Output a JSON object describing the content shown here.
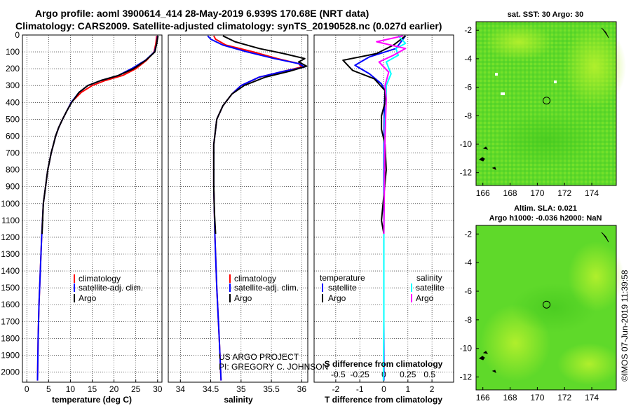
{
  "figure": {
    "title_line1": "Argo profile: aoml 3900614_414 28-May-2019 6.939S 170.68E (NRT data)",
    "title_line2": "Climatology: CARS2009. Satellite-adjusted climatology: synTS_20190528.nc (0.027d earlier)",
    "credit_line1": "US ARGO PROJECT",
    "credit_line2": "PI: GREGORY C. JOHNSON",
    "timestamp": "©IMOS 07-Jun-2019 11:39:58",
    "colors": {
      "climatology": "#ff0000",
      "satellite": "#0000ff",
      "argo": "#000000",
      "sal_satellite": "#00ffff",
      "sal_argo": "#ff00ff",
      "map_base": "#5fd92a",
      "map_light": "#a8ee2a"
    }
  },
  "chart_data": [
    {
      "type": "line",
      "name": "temperature-profile",
      "xlabel": "temperature (deg C)",
      "xlim": [
        -1,
        31
      ],
      "xticks": [
        0,
        5,
        10,
        15,
        20,
        25,
        30
      ],
      "ylim": [
        2060,
        0
      ],
      "yticks": [
        0,
        100,
        200,
        300,
        400,
        500,
        600,
        700,
        800,
        900,
        1000,
        1100,
        1200,
        1300,
        1400,
        1500,
        1600,
        1700,
        1800,
        1900,
        2000
      ],
      "legend": {
        "position": "lower-center",
        "entries": [
          "climatology",
          "satellite-adj. clim.",
          "Argo"
        ]
      },
      "series": [
        {
          "name": "climatology",
          "color": "#ff0000",
          "x": [
            29.8,
            29.6,
            29.2,
            27.5,
            25,
            22,
            18,
            15,
            12.5,
            10.2,
            9.2,
            8.2,
            7.3,
            6.6,
            6.1,
            5.6,
            5.2,
            4.8,
            4.3,
            3.8,
            3.4,
            3.1,
            2.8,
            2.6,
            2.45
          ],
          "y": [
            5,
            50,
            100,
            150,
            200,
            240,
            270,
            300,
            340,
            400,
            450,
            500,
            550,
            600,
            650,
            700,
            750,
            800,
            900,
            1000,
            1200,
            1400,
            1600,
            1800,
            2050
          ]
        },
        {
          "name": "satellite-adj. clim.",
          "color": "#0000ff",
          "x": [
            30.0,
            29.8,
            29.3,
            27.2,
            24,
            21,
            17,
            14,
            12,
            10.2,
            9.2,
            8.2,
            7.3,
            6.6,
            6.1,
            5.6,
            5.2,
            4.8,
            4.3,
            3.8,
            3.4,
            3.1,
            2.8,
            2.6,
            2.45
          ],
          "y": [
            5,
            50,
            100,
            150,
            200,
            240,
            270,
            300,
            340,
            400,
            450,
            500,
            550,
            600,
            650,
            700,
            750,
            800,
            900,
            1000,
            1200,
            1400,
            1600,
            1800,
            2050
          ]
        },
        {
          "name": "Argo",
          "color": "#000000",
          "x": [
            30.1,
            29.8,
            29.4,
            27.3,
            24.5,
            21,
            17,
            14,
            12,
            10.3,
            9.2,
            8.2,
            7.3,
            6.6,
            6.1,
            5.6,
            5.2,
            4.8,
            4.3,
            3.8,
            3.5
          ],
          "y": [
            5,
            50,
            100,
            150,
            200,
            240,
            270,
            300,
            340,
            400,
            450,
            500,
            550,
            600,
            650,
            700,
            750,
            800,
            900,
            1000,
            1180
          ]
        }
      ]
    },
    {
      "type": "line",
      "name": "salinity-profile",
      "xlabel": "salinity",
      "xlim": [
        33.8,
        36.1
      ],
      "xticks": [
        34,
        34.5,
        35,
        35.5,
        36
      ],
      "ylim": [
        2060,
        0
      ],
      "legend": {
        "position": "lower-center",
        "entries": [
          "climatology",
          "satellite-adj. clim.",
          "Argo"
        ]
      },
      "series": [
        {
          "name": "climatology",
          "color": "#ff0000",
          "x": [
            34.55,
            34.58,
            34.75,
            35.2,
            35.6,
            35.95,
            36.0,
            35.7,
            35.3,
            35.0,
            34.85,
            34.7,
            34.6,
            34.55,
            34.55,
            34.57,
            34.6,
            34.64,
            34.67
          ],
          "y": [
            5,
            25,
            60,
            100,
            140,
            170,
            190,
            215,
            250,
            300,
            350,
            420,
            500,
            650,
            900,
            1200,
            1500,
            1800,
            2050
          ]
        },
        {
          "name": "satellite-adj. clim.",
          "color": "#0000ff",
          "x": [
            34.45,
            34.5,
            34.7,
            35.1,
            35.55,
            35.95,
            36.05,
            35.7,
            35.3,
            35.0,
            34.85,
            34.7,
            34.6,
            34.55,
            34.55,
            34.57,
            34.6,
            34.64,
            34.67
          ],
          "y": [
            5,
            25,
            60,
            100,
            140,
            170,
            190,
            215,
            250,
            300,
            350,
            420,
            500,
            650,
            900,
            1200,
            1500,
            1800,
            2050
          ]
        },
        {
          "name": "Argo",
          "color": "#000000",
          "x": [
            34.7,
            34.9,
            35.3,
            35.7,
            36.05,
            35.95,
            36.08,
            35.8,
            35.4,
            35.05,
            34.85,
            34.7,
            34.6,
            34.55,
            34.55,
            34.56,
            34.58
          ],
          "y": [
            5,
            40,
            80,
            110,
            140,
            160,
            185,
            215,
            250,
            300,
            350,
            420,
            500,
            650,
            900,
            1050,
            1180
          ]
        }
      ]
    },
    {
      "type": "line",
      "name": "difference-profile",
      "xlabel": "T difference from climatology",
      "xlabel_top": "S difference from climatology",
      "xlim": [
        -2.9,
        2.9
      ],
      "xticks": [
        -2,
        -1,
        0,
        1,
        2
      ],
      "s_ticks": [
        "-0.5",
        "-0.25",
        "0",
        "0.25",
        "0.5"
      ],
      "s_tick_positions": [
        -1.9,
        -1.0,
        0,
        1.0,
        1.9
      ],
      "ylim": [
        2060,
        0
      ],
      "legend": {
        "position": "lower-center",
        "left_header": "temperature",
        "right_header": "salinity",
        "left_entries": [
          "satellite",
          "Argo"
        ],
        "right_entries": [
          "satellite",
          "Argo"
        ]
      },
      "series": [
        {
          "name": "temperature satellite",
          "color": "#0000ff",
          "x": [
            0.9,
            0.5,
            -0.6,
            -1.2,
            -0.6,
            -0.1,
            0.05,
            0.02,
            0.0,
            0.0
          ],
          "y": [
            5,
            80,
            130,
            180,
            230,
            290,
            330,
            420,
            800,
            2050
          ]
        },
        {
          "name": "temperature Argo",
          "color": "#000000",
          "x": [
            0.9,
            0.4,
            -0.3,
            -1.7,
            -1.3,
            -0.4,
            0.05,
            0.05,
            -0.1,
            -0.1,
            0.05,
            0.1,
            0.0,
            -0.1,
            0.0
          ],
          "y": [
            5,
            60,
            110,
            150,
            210,
            260,
            330,
            400,
            480,
            560,
            650,
            800,
            950,
            1100,
            1180
          ]
        },
        {
          "name": "salinity satellite",
          "color": "#00ffff",
          "x": [
            0.6,
            0.9,
            0.5,
            0.6,
            0.1,
            0.3,
            0.1,
            0.1,
            0.05,
            0.02,
            0.0,
            0.0,
            -0.02
          ],
          "y": [
            5,
            50,
            80,
            120,
            160,
            230,
            300,
            380,
            500,
            800,
            1200,
            1700,
            2050
          ]
        },
        {
          "name": "salinity Argo",
          "color": "#ff00ff",
          "x": [
            0.8,
            -0.3,
            0.9,
            0.4,
            -0.2,
            0.2,
            0.05,
            0.1,
            0.05,
            0.0
          ],
          "y": [
            5,
            40,
            80,
            120,
            160,
            220,
            300,
            380,
            600,
            1180
          ]
        }
      ]
    },
    {
      "type": "heatmap",
      "name": "sst-map",
      "title": "sat. SST: 30 Argo: 30",
      "xlim": [
        165.5,
        175.8
      ],
      "ylim": [
        -12.9,
        -1.4
      ],
      "xticks": [
        166,
        168,
        170,
        172,
        174
      ],
      "yticks": [
        -2,
        -4,
        -6,
        -8,
        -10,
        -12
      ],
      "marker": {
        "lon": 170.68,
        "lat": -6.939
      }
    },
    {
      "type": "heatmap",
      "name": "sla-map",
      "title": "Altim. SLA: 0.021",
      "subtitle": "Argo h1000: -0.036 h2000: NaN",
      "xlim": [
        165.5,
        175.8
      ],
      "ylim": [
        -12.9,
        -1.4
      ],
      "xticks": [
        166,
        168,
        170,
        172,
        174
      ],
      "yticks": [
        -2,
        -4,
        -6,
        -8,
        -10,
        -12
      ],
      "marker": {
        "lon": 170.68,
        "lat": -6.939
      }
    }
  ]
}
